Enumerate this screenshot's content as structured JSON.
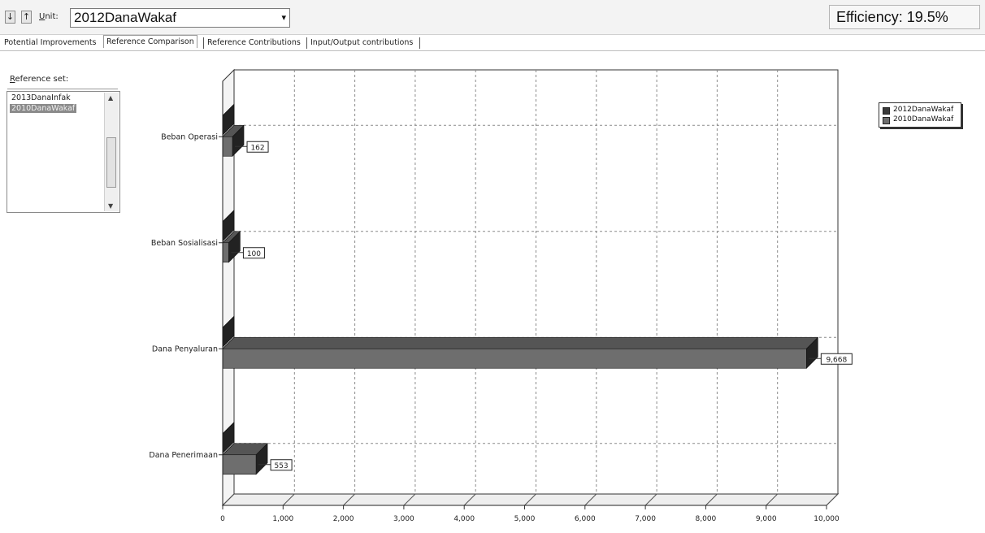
{
  "toolbar": {
    "down_icon": "arrow-down-icon",
    "up_icon": "arrow-up-icon",
    "unit_label_prefix": "U",
    "unit_label_rest": "nit:",
    "unit_value": "2012DanaWakaf",
    "dropdown_icon": "chevron-down-icon",
    "efficiency_text": "Efficiency: 19.5%"
  },
  "tabs": [
    {
      "label": "Potential Improvements",
      "active": false
    },
    {
      "label": "Reference Comparison",
      "active": true
    },
    {
      "label": "Reference Contributions",
      "active": false
    },
    {
      "label": "Input/Output contributions",
      "active": false
    }
  ],
  "reference_set": {
    "title_prefix": "R",
    "title_rest": "eference set:",
    "items": [
      {
        "label": "2013DanaInfak",
        "selected": false
      },
      {
        "label": "2010DanaWakaf",
        "selected": true
      }
    ]
  },
  "colors": {
    "series_dark": "#3a3a3a",
    "series_mid": "#6e6e6e",
    "grid": "#8a8a8a"
  },
  "chart_data": {
    "type": "bar",
    "orientation": "horizontal",
    "style": "3d",
    "categories": [
      "Beban Operasi",
      "Beban Sosialisasi",
      "Dana Penyaluran",
      "Dana Penerimaan"
    ],
    "series": [
      {
        "name": "2012DanaWakaf",
        "values": [
          0,
          0,
          0,
          0
        ]
      },
      {
        "name": "2010DanaWakaf",
        "values": [
          162,
          100,
          9668,
          553
        ]
      }
    ],
    "data_labels": [
      "162",
      "100",
      "9,668",
      "553"
    ],
    "x_ticks": [
      "0",
      "1,000",
      "2,000",
      "3,000",
      "4,000",
      "5,000",
      "6,000",
      "7,000",
      "8,000",
      "9,000",
      "10,000"
    ],
    "xlim": [
      0,
      10000
    ],
    "grid": true,
    "legend_position": "top-right"
  }
}
